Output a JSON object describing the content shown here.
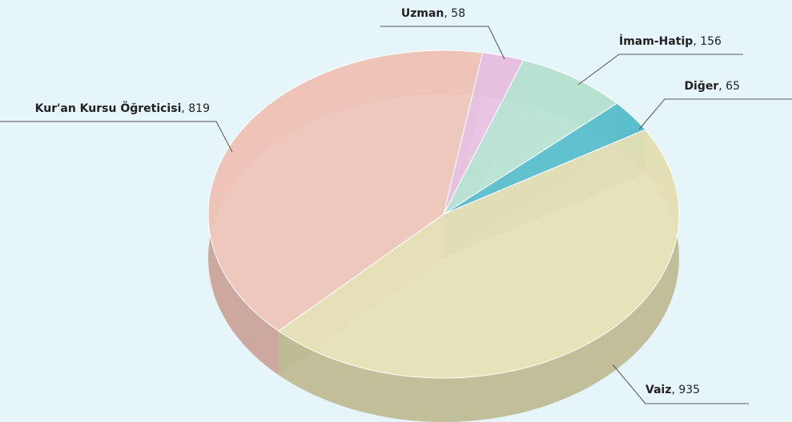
{
  "chart_data": {
    "type": "pie",
    "categories": [
      "Kur'an Kursu Öğreticisi",
      "Uzman",
      "İmam-Hatip",
      "Diğer",
      "Vaiz"
    ],
    "values": [
      819,
      58,
      156,
      65,
      935
    ],
    "value_labels": [
      ", 819",
      ", 58",
      ", 156",
      ", 65",
      ", 935"
    ],
    "colors": [
      "#eec5b8",
      "#e8c2e2",
      "#b8e3d3",
      "#5cc0cd",
      "#e6e0b6"
    ],
    "side_colors": [
      "#c9a094",
      "#c49bbd",
      "#90bcad",
      "#3f9aa6",
      "#bdb88f"
    ]
  }
}
